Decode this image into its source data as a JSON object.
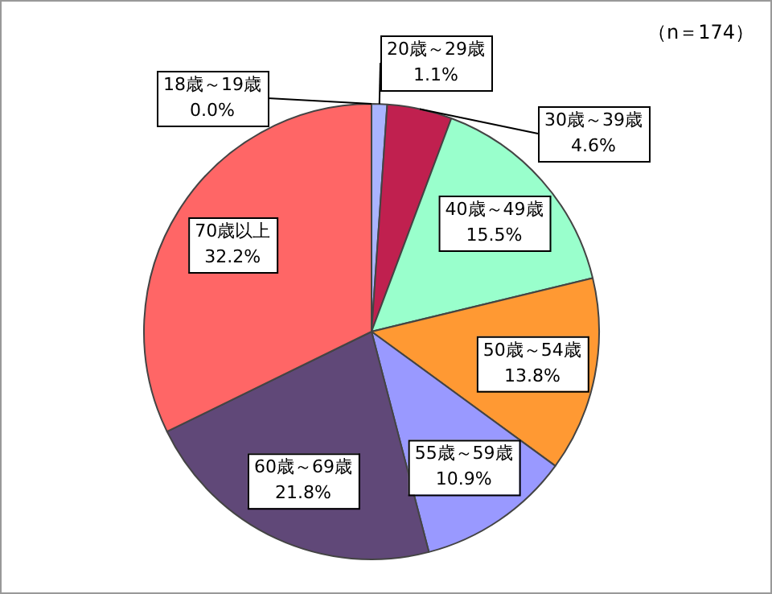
{
  "chart_data": {
    "type": "pie",
    "categories": [
      "18歳～19歳",
      "20歳～29歳",
      "30歳～39歳",
      "40歳～49歳",
      "50歳～54歳",
      "55歳～59歳",
      "60歳～69歳",
      "70歳以上"
    ],
    "values": [
      0.0,
      1.1,
      4.6,
      15.5,
      13.8,
      10.9,
      21.8,
      32.2
    ],
    "colors": [
      "#ccccff",
      "#aab4ff",
      "#c0204f",
      "#99ffcc",
      "#ff9933",
      "#9999ff",
      "#604878",
      "#ff6666"
    ],
    "value_labels": [
      "0.0%",
      "1.1%",
      "4.6%",
      "15.5%",
      "13.8%",
      "10.9%",
      "21.8%",
      "32.2%"
    ],
    "legend": false,
    "annotations": [
      "（n＝174）"
    ]
  }
}
